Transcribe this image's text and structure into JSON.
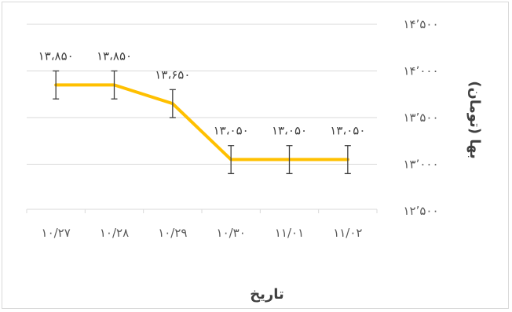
{
  "chart_data": {
    "type": "line",
    "title": "",
    "xlabel": "تاریخ",
    "ylabel": "بها (تومان)",
    "categories": [
      "۱۰/۲۷",
      "۱۰/۲۸",
      "۱۰/۲۹",
      "۱۰/۳۰",
      "۱۱/۰۱",
      "۱۱/۰۲"
    ],
    "series": [
      {
        "values": [
          13850,
          13850,
          13650,
          13050,
          13050,
          13050
        ],
        "data_labels": [
          "۱۳،۸۵۰",
          "۱۳،۸۵۰",
          "۱۳،۶۵۰",
          "۱۳،۰۵۰",
          "۱۳،۰۵۰",
          "۱۳،۰۵۰"
        ],
        "error": 150,
        "color": "#FFC000"
      }
    ],
    "ylim": [
      12500,
      14500
    ],
    "yticks": [
      12500,
      13000,
      13500,
      14000,
      14500
    ],
    "ytick_labels": [
      "۱۲٬۵۰۰",
      "۱۳٬۰۰۰",
      "۱۳٬۵۰۰",
      "۱۴٬۰۰۰",
      "۱۴٬۵۰۰"
    ],
    "y_axis_position": "right",
    "grid": true,
    "legend": "none",
    "gridline_color": "#d9d9d9",
    "error_bar_color": "#404040"
  }
}
